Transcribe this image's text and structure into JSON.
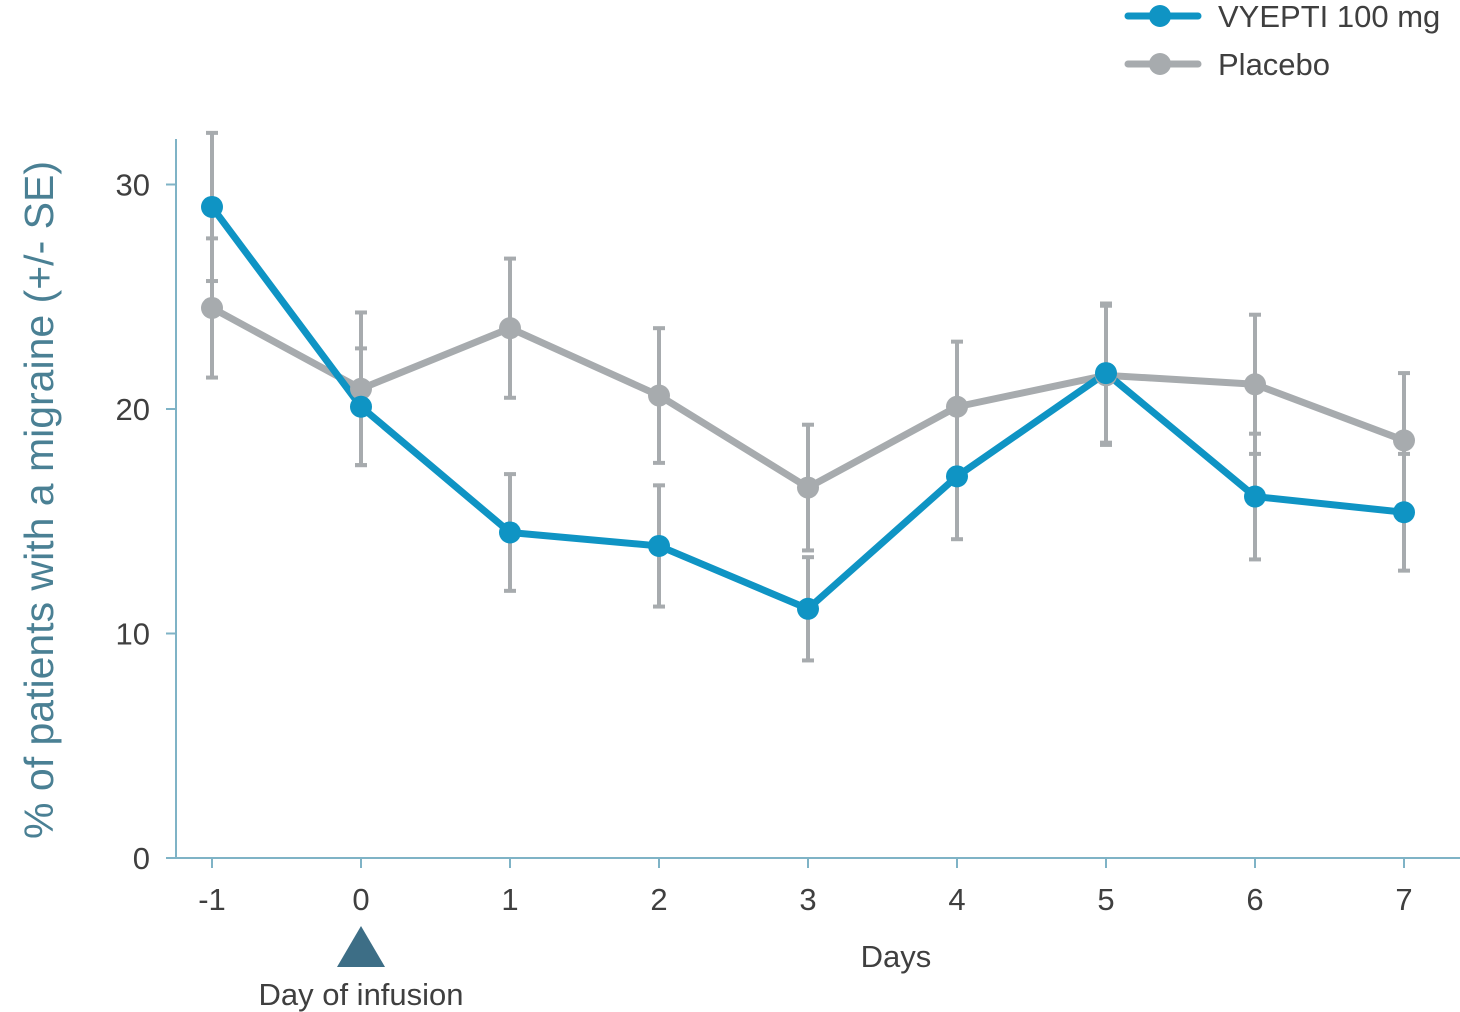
{
  "chart_data": {
    "type": "line",
    "title": "",
    "xlabel": "Days",
    "ylabel": "% of patients with a migraine (+/- SE)",
    "x": [
      "-1",
      "0",
      "1",
      "2",
      "3",
      "4",
      "5",
      "6",
      "7"
    ],
    "y_ticks": [
      "0",
      "10",
      "20",
      "30"
    ],
    "ylim": [
      0,
      32
    ],
    "grid": false,
    "legend_position": "top-right",
    "series": [
      {
        "name": "Placebo",
        "color": "#a7abae",
        "values": [
          24.5,
          20.9,
          23.6,
          20.6,
          16.5,
          20.1,
          21.5,
          21.1,
          18.6
        ],
        "se": [
          3.1,
          3.4,
          3.1,
          3.0,
          2.8,
          2.9,
          3.1,
          3.1,
          3.0
        ]
      },
      {
        "name": "VYEPTI 100 mg",
        "color": "#0f94c4",
        "values": [
          29.0,
          20.1,
          14.5,
          13.9,
          11.1,
          17.0,
          21.6,
          16.1,
          15.4
        ],
        "se": [
          3.3,
          2.6,
          2.6,
          2.7,
          2.3,
          2.8,
          3.1,
          2.8,
          2.6
        ]
      }
    ],
    "annotation": {
      "x": "0",
      "label": "Day of infusion",
      "marker_color": "#3d6e86",
      "marker": "triangle-up"
    },
    "colors": {
      "axis": "#7fb3c6",
      "ylabel": "#4a8094",
      "text": "#3f3f3f"
    }
  }
}
